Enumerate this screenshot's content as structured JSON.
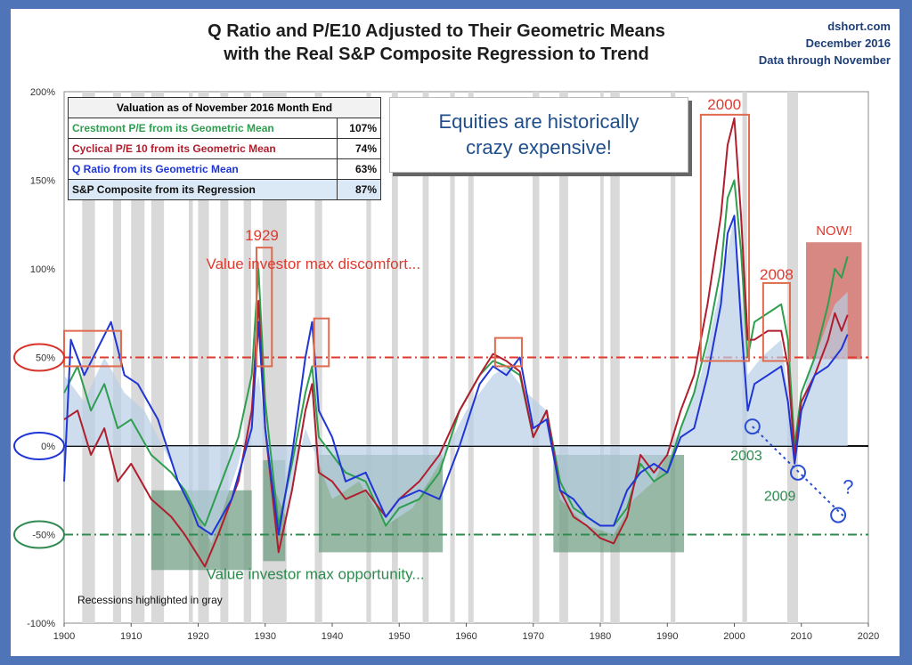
{
  "header": {
    "title_line1": "Q Ratio and P/E10 Adjusted to Their Geometric Means",
    "title_line2": "with the Real S&P Composite Regression to Trend",
    "source": "dshort.com",
    "date": "December 2016",
    "data_through": "Data through November"
  },
  "table": {
    "header": "Valuation as of November 2016 Month End",
    "rows": [
      {
        "label": "Crestmont P/E from its Geometric Mean",
        "value": "107%",
        "color": "#2e9e4f"
      },
      {
        "label": "Cyclical P/E 10 from its Geometric Mean",
        "value": "74%",
        "color": "#b01e2e"
      },
      {
        "label": "Q Ratio from its Geometric Mean",
        "value": "63%",
        "color": "#1f35d6"
      },
      {
        "label": "S&P Composite from its Regression",
        "value": "87%",
        "color": "#111111"
      }
    ]
  },
  "callout": {
    "line1": "Equities are historically",
    "line2": "crazy expensive!"
  },
  "annotations": {
    "max_discomfort": "Value investor max discomfort...",
    "max_opportunity": "Value investor max opportunity...",
    "recessions": "Recessions highlighted in gray",
    "y1929": "1929",
    "y2000": "2000",
    "y2008": "2008",
    "now": "NOW!",
    "y2003": "2003",
    "y2009": "2009",
    "question": "?"
  },
  "chart_data": {
    "type": "line",
    "xlim": [
      1900,
      2020
    ],
    "ylim": [
      -100,
      200
    ],
    "x_ticks": [
      "1900",
      "1910",
      "1920",
      "1930",
      "1940",
      "1950",
      "1960",
      "1970",
      "1980",
      "1990",
      "2000",
      "2010",
      "2020"
    ],
    "y_ticks": [
      "200%",
      "150%",
      "100%",
      "50%",
      "0%",
      "-50%",
      "-100%"
    ],
    "reference_lines": [
      50,
      0,
      -50
    ],
    "recessions": [
      [
        1902.7,
        1904.6
      ],
      [
        1907.3,
        1908.5
      ],
      [
        1910.0,
        1912.0
      ],
      [
        1913.0,
        1914.9
      ],
      [
        1918.6,
        1919.2
      ],
      [
        1920.0,
        1921.6
      ],
      [
        1923.3,
        1924.5
      ],
      [
        1926.8,
        1927.9
      ],
      [
        1929.6,
        1933.2
      ],
      [
        1937.4,
        1938.5
      ],
      [
        1945.1,
        1945.8
      ],
      [
        1948.9,
        1949.8
      ],
      [
        1953.5,
        1954.4
      ],
      [
        1957.6,
        1958.3
      ],
      [
        1960.3,
        1961.1
      ],
      [
        1969.9,
        1970.9
      ],
      [
        1973.9,
        1975.2
      ],
      [
        1980.0,
        1980.5
      ],
      [
        1981.5,
        1982.9
      ],
      [
        1990.5,
        1991.2
      ],
      [
        2001.2,
        2001.9
      ],
      [
        2007.9,
        2009.5
      ]
    ],
    "series": [
      {
        "name": "Crestmont P/E from its Geometric Mean",
        "color": "#2e9e4f",
        "x": [
          1900,
          1902,
          1904,
          1906,
          1908,
          1910,
          1913,
          1916,
          1918,
          1920,
          1921,
          1923,
          1926,
          1928,
          1929,
          1930,
          1932,
          1934,
          1936,
          1937,
          1938,
          1940,
          1942,
          1945,
          1948,
          1950,
          1953,
          1956,
          1959,
          1962,
          1964,
          1966,
          1968,
          1970,
          1972,
          1974,
          1976,
          1978,
          1980,
          1982,
          1984,
          1986,
          1988,
          1990,
          1992,
          1994,
          1996,
          1998,
          1999,
          2000,
          2001,
          2002,
          2003,
          2005,
          2007,
          2008,
          2009,
          2010,
          2012,
          2014,
          2015,
          2016,
          2016.9
        ],
        "y": [
          30,
          45,
          20,
          35,
          10,
          15,
          -5,
          -15,
          -25,
          -40,
          -45,
          -25,
          5,
          40,
          100,
          25,
          -45,
          -10,
          30,
          45,
          5,
          -5,
          -15,
          -20,
          -45,
          -35,
          -30,
          -15,
          20,
          40,
          48,
          45,
          40,
          5,
          20,
          -20,
          -35,
          -40,
          -45,
          -45,
          -35,
          -10,
          -20,
          -15,
          10,
          30,
          60,
          100,
          140,
          150,
          110,
          50,
          70,
          75,
          80,
          60,
          0,
          30,
          50,
          80,
          100,
          95,
          107
        ]
      },
      {
        "name": "Cyclical P/E 10 from its Geometric Mean",
        "color": "#b01e2e",
        "x": [
          1900,
          1902,
          1904,
          1906,
          1908,
          1910,
          1913,
          1916,
          1918,
          1920,
          1921,
          1923,
          1926,
          1928,
          1929,
          1930,
          1932,
          1934,
          1936,
          1937,
          1938,
          1940,
          1942,
          1945,
          1948,
          1950,
          1953,
          1956,
          1959,
          1962,
          1964,
          1966,
          1968,
          1970,
          1972,
          1974,
          1976,
          1978,
          1980,
          1982,
          1984,
          1986,
          1988,
          1990,
          1992,
          1994,
          1996,
          1998,
          1999,
          2000,
          2001,
          2002,
          2003,
          2005,
          2007,
          2008,
          2009,
          2010,
          2012,
          2014,
          2015,
          2016,
          2016.9
        ],
        "y": [
          15,
          20,
          -5,
          10,
          -20,
          -10,
          -30,
          -40,
          -50,
          -62,
          -68,
          -50,
          -20,
          20,
          82,
          10,
          -60,
          -25,
          20,
          35,
          -15,
          -20,
          -30,
          -25,
          -40,
          -30,
          -20,
          -5,
          20,
          40,
          52,
          48,
          42,
          5,
          20,
          -25,
          -40,
          -45,
          -52,
          -55,
          -40,
          -5,
          -15,
          -5,
          20,
          40,
          80,
          130,
          170,
          185,
          130,
          60,
          60,
          65,
          65,
          45,
          -5,
          25,
          40,
          60,
          75,
          65,
          74
        ]
      },
      {
        "name": "Q Ratio from its Geometric Mean",
        "color": "#1f35d6",
        "x": [
          1900,
          1901,
          1903,
          1905,
          1907,
          1909,
          1911,
          1914,
          1917,
          1919,
          1920,
          1922,
          1925,
          1928,
          1929,
          1930,
          1932,
          1934,
          1936,
          1937,
          1938,
          1940,
          1942,
          1945,
          1948,
          1950,
          1953,
          1956,
          1959,
          1962,
          1964,
          1966,
          1968,
          1970,
          1972,
          1974,
          1976,
          1978,
          1980,
          1982,
          1984,
          1986,
          1988,
          1990,
          1992,
          1994,
          1996,
          1998,
          1999,
          2000,
          2001,
          2002,
          2003,
          2005,
          2007,
          2008,
          2009,
          2010,
          2012,
          2014,
          2015,
          2016,
          2016.9
        ],
        "y": [
          -20,
          60,
          40,
          55,
          70,
          40,
          35,
          15,
          -20,
          -35,
          -45,
          -50,
          -30,
          10,
          70,
          10,
          -50,
          -5,
          50,
          70,
          20,
          5,
          -20,
          -15,
          -40,
          -30,
          -25,
          -30,
          0,
          35,
          45,
          40,
          50,
          10,
          15,
          -25,
          -30,
          -40,
          -45,
          -45,
          -25,
          -15,
          -10,
          -15,
          5,
          10,
          40,
          80,
          120,
          130,
          70,
          20,
          35,
          40,
          45,
          25,
          -10,
          20,
          40,
          45,
          50,
          55,
          63
        ]
      },
      {
        "name": "S&P Composite from its Regression",
        "color": "#b9cfe6",
        "x": [
          1900,
          1903,
          1906,
          1909,
          1912,
          1916,
          1920,
          1922,
          1926,
          1929,
          1931,
          1933,
          1936,
          1940,
          1944,
          1948,
          1952,
          1956,
          1960,
          1964,
          1966,
          1969,
          1972,
          1974,
          1978,
          1982,
          1985,
          1988,
          1992,
          1995,
          1998,
          2000,
          2002,
          2004,
          2007,
          2009,
          2011,
          2013,
          2015,
          2016.9
        ],
        "y": [
          40,
          25,
          50,
          30,
          20,
          -10,
          -40,
          -55,
          -10,
          40,
          -20,
          -40,
          10,
          -30,
          -20,
          -45,
          -35,
          -10,
          20,
          40,
          45,
          30,
          20,
          -30,
          -45,
          -50,
          -30,
          -20,
          10,
          40,
          90,
          130,
          40,
          50,
          60,
          0,
          40,
          60,
          80,
          87
        ]
      }
    ]
  }
}
